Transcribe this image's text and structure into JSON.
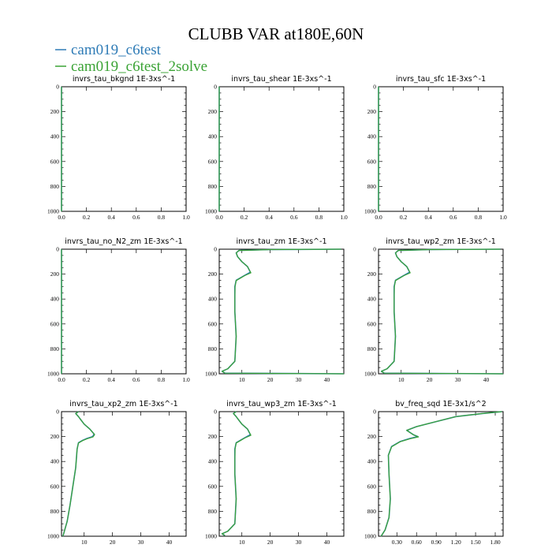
{
  "figure": {
    "title": "CLUBB VAR at180E,60N",
    "legend": [
      {
        "label": "cam019_c6test",
        "color": "#2e7bb6"
      },
      {
        "label": "cam019_c6test_2solve",
        "color": "#3aa335"
      }
    ]
  },
  "chart_data": [
    {
      "type": "line",
      "title": "invrs_tau_bkgnd",
      "units": "1E-3xs^-1",
      "xlim": [
        0,
        1.0
      ],
      "ylim": [
        1000,
        0
      ],
      "xticks": [
        "0.0",
        "0.2",
        "0.4",
        "0.6",
        "0.8",
        "1.0"
      ],
      "yticks": [
        "0",
        "200",
        "400",
        "600",
        "800",
        "1000"
      ],
      "series": [
        {
          "name": "cam019_c6test",
          "x": [
            0,
            0
          ],
          "y": [
            0,
            1000
          ]
        },
        {
          "name": "cam019_c6test_2solve",
          "x": [
            0,
            0
          ],
          "y": [
            0,
            1000
          ]
        }
      ]
    },
    {
      "type": "line",
      "title": "invrs_tau_shear",
      "units": "1E-3xs^-1",
      "xlim": [
        0,
        1.0
      ],
      "ylim": [
        1000,
        0
      ],
      "xticks": [
        "0.0",
        "0.2",
        "0.4",
        "0.6",
        "0.8",
        "1.0"
      ],
      "yticks": [
        "0",
        "200",
        "400",
        "600",
        "800",
        "1000"
      ],
      "series": [
        {
          "name": "cam019_c6test",
          "x": [
            0,
            0
          ],
          "y": [
            0,
            1000
          ]
        },
        {
          "name": "cam019_c6test_2solve",
          "x": [
            0,
            0
          ],
          "y": [
            0,
            1000
          ]
        }
      ]
    },
    {
      "type": "line",
      "title": "invrs_tau_sfc",
      "units": "1E-3xs^-1",
      "xlim": [
        0,
        1.0
      ],
      "ylim": [
        1000,
        0
      ],
      "xticks": [
        "0.0",
        "0.2",
        "0.4",
        "0.6",
        "0.8",
        "1.0"
      ],
      "yticks": [
        "0",
        "200",
        "400",
        "600",
        "800",
        "1000"
      ],
      "series": [
        {
          "name": "cam019_c6test",
          "x": [
            0,
            0
          ],
          "y": [
            0,
            1000
          ]
        },
        {
          "name": "cam019_c6test_2solve",
          "x": [
            0,
            0
          ],
          "y": [
            0,
            1000
          ]
        }
      ]
    },
    {
      "type": "line",
      "title": "invrs_tau_no_N2_zm",
      "units": "1E-3xs^-1",
      "xlim": [
        0,
        1.0
      ],
      "ylim": [
        1000,
        0
      ],
      "xticks": [
        "0.0",
        "0.2",
        "0.4",
        "0.6",
        "0.8",
        "1.0"
      ],
      "yticks": [
        "0",
        "200",
        "400",
        "600",
        "800",
        "1000"
      ],
      "series": [
        {
          "name": "cam019_c6test",
          "x": [
            0,
            0
          ],
          "y": [
            0,
            1000
          ]
        },
        {
          "name": "cam019_c6test_2solve",
          "x": [
            0,
            0
          ],
          "y": [
            0,
            1000
          ]
        }
      ]
    },
    {
      "type": "line",
      "title": "invrs_tau_zm",
      "units": "1E-3xs^-1",
      "xlim": [
        2,
        46
      ],
      "ylim": [
        1000,
        0
      ],
      "xticks": [
        "10",
        "20",
        "30",
        "40"
      ],
      "yticks": [
        "0",
        "200",
        "400",
        "600",
        "800",
        "1000"
      ],
      "series": [
        {
          "name": "cam019_c6test",
          "x": [
            45,
            20,
            9,
            8,
            8.5,
            10,
            12,
            13,
            11,
            9.5,
            8,
            7.5,
            7.5,
            7.5,
            8,
            7.5,
            5,
            3,
            4,
            46
          ],
          "y": [
            0,
            3,
            10,
            30,
            60,
            100,
            140,
            185,
            210,
            230,
            250,
            300,
            400,
            500,
            700,
            900,
            960,
            980,
            995,
            1000
          ]
        },
        {
          "name": "cam019_c6test_2solve",
          "x": [
            45,
            20,
            9,
            8,
            8.5,
            10,
            12,
            13.2,
            11,
            9.5,
            8,
            7.6,
            7.5,
            7.5,
            8,
            7.5,
            5,
            3,
            4,
            46
          ],
          "y": [
            0,
            3,
            10,
            30,
            60,
            100,
            140,
            190,
            212,
            232,
            252,
            300,
            400,
            500,
            700,
            900,
            960,
            980,
            995,
            1000
          ]
        }
      ]
    },
    {
      "type": "line",
      "title": "invrs_tau_wp2_zm",
      "units": "1E-3xs^-1",
      "xlim": [
        2,
        46
      ],
      "ylim": [
        1000,
        0
      ],
      "xticks": [
        "10",
        "20",
        "30",
        "40"
      ],
      "yticks": [
        "0",
        "200",
        "400",
        "600",
        "800",
        "1000"
      ],
      "series": [
        {
          "name": "cam019_c6test",
          "x": [
            45,
            20,
            9,
            8,
            8.5,
            10,
            12,
            13,
            11,
            9.5,
            8,
            7.5,
            7.5,
            7.5,
            8,
            7.5,
            5,
            3,
            4,
            46
          ],
          "y": [
            0,
            3,
            10,
            30,
            60,
            100,
            140,
            185,
            210,
            230,
            250,
            300,
            400,
            500,
            700,
            900,
            960,
            980,
            995,
            1000
          ]
        },
        {
          "name": "cam019_c6test_2solve",
          "x": [
            45,
            20,
            9,
            8,
            8.5,
            10,
            12,
            13.2,
            11,
            9.5,
            8,
            7.6,
            7.5,
            7.5,
            8,
            7.5,
            5,
            3,
            4,
            46
          ],
          "y": [
            0,
            3,
            10,
            30,
            60,
            100,
            140,
            190,
            212,
            232,
            252,
            300,
            400,
            500,
            700,
            900,
            960,
            980,
            995,
            1000
          ]
        }
      ]
    },
    {
      "type": "line",
      "title": "invrs_tau_xp2_zm",
      "units": "1E-3xs^-1",
      "xlim": [
        2,
        46
      ],
      "ylim": [
        1000,
        0
      ],
      "xticks": [
        "10",
        "20",
        "30",
        "40"
      ],
      "yticks": [
        "0",
        "200",
        "400",
        "600",
        "800",
        "1000"
      ],
      "series": [
        {
          "name": "cam019_c6test",
          "x": [
            8,
            7,
            8,
            9,
            10,
            12,
            13.5,
            13,
            11,
            9.5,
            8,
            7.5,
            7,
            6,
            5,
            4,
            3,
            2.5
          ],
          "y": [
            0,
            15,
            40,
            70,
            100,
            140,
            180,
            200,
            215,
            230,
            250,
            300,
            450,
            600,
            750,
            880,
            960,
            1000
          ]
        },
        {
          "name": "cam019_c6test_2solve",
          "x": [
            8,
            7,
            8,
            9,
            10,
            12,
            13.7,
            13.1,
            11,
            9.5,
            8,
            7.5,
            7,
            6,
            5,
            4,
            3,
            2.5
          ],
          "y": [
            0,
            15,
            40,
            70,
            100,
            140,
            185,
            203,
            218,
            232,
            252,
            300,
            450,
            600,
            750,
            880,
            960,
            1000
          ]
        }
      ]
    },
    {
      "type": "line",
      "title": "invrs_tau_wp3_zm",
      "units": "1E-3xs^-1",
      "xlim": [
        2,
        46
      ],
      "ylim": [
        1000,
        0
      ],
      "xticks": [
        "10",
        "20",
        "30",
        "40"
      ],
      "yticks": [
        "0",
        "200",
        "400",
        "600",
        "800",
        "1000"
      ],
      "series": [
        {
          "name": "cam019_c6test",
          "x": [
            8,
            7,
            8,
            9,
            10,
            12,
            13,
            11,
            9.5,
            8,
            7.5,
            7.5,
            7.5,
            8,
            7.5,
            5,
            3,
            4
          ],
          "y": [
            0,
            15,
            40,
            70,
            100,
            140,
            185,
            210,
            230,
            250,
            300,
            400,
            500,
            700,
            900,
            960,
            980,
            995
          ]
        },
        {
          "name": "cam019_c6test_2solve",
          "x": [
            8,
            7,
            8,
            9,
            10,
            12,
            13.2,
            11,
            9.5,
            8,
            7.6,
            7.5,
            7.5,
            8,
            7.5,
            5,
            3,
            4
          ],
          "y": [
            0,
            15,
            40,
            70,
            100,
            140,
            190,
            212,
            232,
            252,
            300,
            400,
            500,
            700,
            900,
            960,
            980,
            995
          ]
        }
      ]
    },
    {
      "type": "line",
      "title": "bv_freq_sqd",
      "units": "1E-3x1/s^2",
      "xlim": [
        0.02,
        1.92
      ],
      "ylim": [
        1000,
        0
      ],
      "xticks": [
        "0.30",
        "0.60",
        "0.90",
        "1.20",
        "1.50",
        "1.80"
      ],
      "yticks": [
        "0",
        "200",
        "400",
        "600",
        "800",
        "1000"
      ],
      "series": [
        {
          "name": "cam019_c6test",
          "x": [
            1.9,
            1.6,
            1.2,
            0.9,
            0.6,
            0.45,
            0.55,
            0.62,
            0.5,
            0.35,
            0.22,
            0.17,
            0.18,
            0.2,
            0.18,
            0.12,
            0.06
          ],
          "y": [
            0,
            15,
            40,
            80,
            120,
            150,
            185,
            200,
            215,
            240,
            280,
            350,
            500,
            700,
            850,
            950,
            1000
          ]
        },
        {
          "name": "cam019_c6test_2solve",
          "x": [
            1.9,
            1.6,
            1.2,
            0.9,
            0.6,
            0.45,
            0.56,
            0.63,
            0.5,
            0.35,
            0.22,
            0.17,
            0.18,
            0.2,
            0.18,
            0.12,
            0.06
          ],
          "y": [
            0,
            15,
            40,
            80,
            120,
            150,
            188,
            203,
            218,
            242,
            282,
            350,
            500,
            700,
            850,
            950,
            1000
          ]
        }
      ]
    }
  ]
}
